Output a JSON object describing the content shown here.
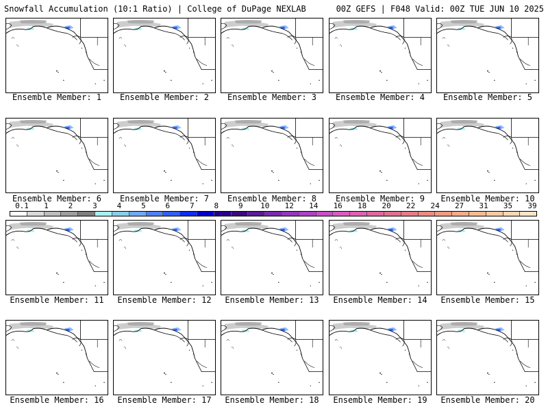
{
  "header": {
    "left": "Snowfall Accumulation (10:1 Ratio) | College of DuPage NEXLAB",
    "right": "00Z GEFS | F048 Valid: 00Z TUE JUN 10 2025"
  },
  "panels": [
    {
      "label": "Ensemble Member: 1"
    },
    {
      "label": "Ensemble Member: 2"
    },
    {
      "label": "Ensemble Member: 3"
    },
    {
      "label": "Ensemble Member: 4"
    },
    {
      "label": "Ensemble Member: 5"
    },
    {
      "label": "Ensemble Member: 6"
    },
    {
      "label": "Ensemble Member: 7"
    },
    {
      "label": "Ensemble Member: 8"
    },
    {
      "label": "Ensemble Member: 9"
    },
    {
      "label": "Ensemble Member: 10"
    },
    {
      "label": "Ensemble Member: 11"
    },
    {
      "label": "Ensemble Member: 12"
    },
    {
      "label": "Ensemble Member: 13"
    },
    {
      "label": "Ensemble Member: 14"
    },
    {
      "label": "Ensemble Member: 15"
    },
    {
      "label": "Ensemble Member: 16"
    },
    {
      "label": "Ensemble Member: 17"
    },
    {
      "label": "Ensemble Member: 18"
    },
    {
      "label": "Ensemble Member: 19"
    },
    {
      "label": "Ensemble Member: 20"
    }
  ],
  "colorbar": {
    "labels": [
      "0.1",
      "1",
      "2",
      "3",
      "4",
      "5",
      "6",
      "7",
      "8",
      "9",
      "10",
      "12",
      "14",
      "16",
      "18",
      "20",
      "22",
      "24",
      "27",
      "31",
      "35",
      "39"
    ],
    "colors": [
      "#ffffff",
      "#d9d9d9",
      "#bdbdbd",
      "#9e9e9e",
      "#7f7f7f",
      "#a8f0f0",
      "#87ceeb",
      "#6fa8ff",
      "#4f7fff",
      "#2f5fff",
      "#0b2bff",
      "#0000cc",
      "#240090",
      "#3b0a80",
      "#5a1a9a",
      "#7a2ab0",
      "#9535c0",
      "#b040c8",
      "#c850c8",
      "#d85cc0",
      "#e060b0",
      "#e068a0",
      "#e07090",
      "#e87a88",
      "#ee8a80",
      "#f29a80",
      "#f5aa88",
      "#f7ba90",
      "#f9c8a0",
      "#fbd6b0",
      "#fde4c8"
    ]
  },
  "map": {
    "land_outline_color": "#000000",
    "snow_colors": [
      "#c8c8c8",
      "#a8a8a8",
      "#2f5fff",
      "#6fa8ff",
      "#a8f0f0"
    ]
  }
}
